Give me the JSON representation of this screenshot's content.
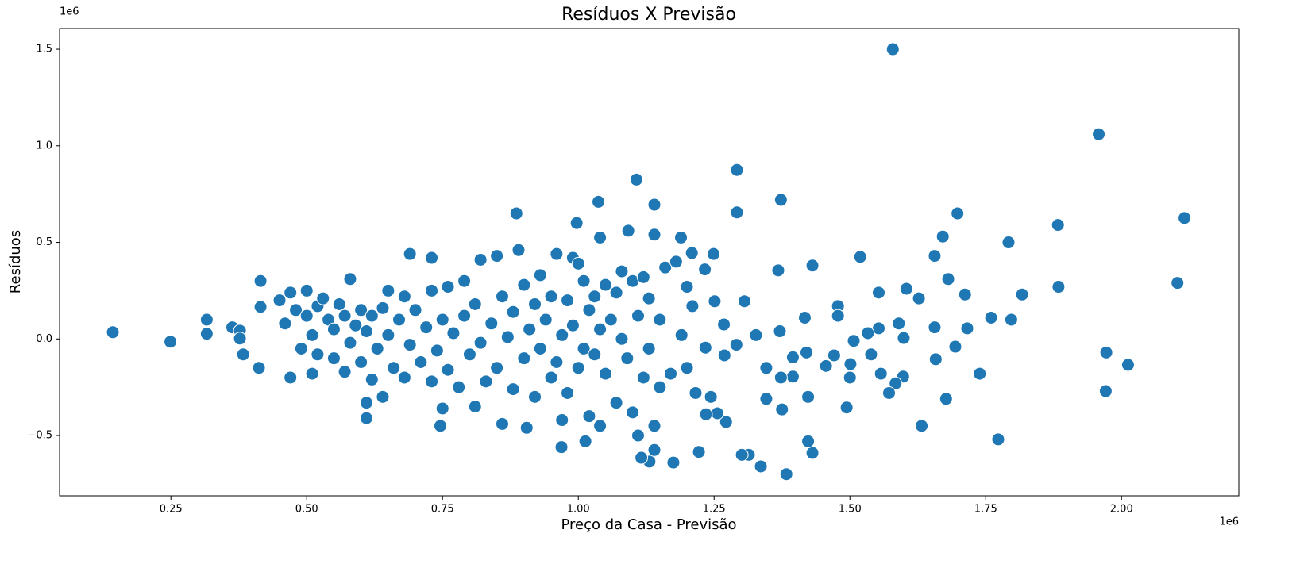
{
  "chart_data": {
    "type": "scatter",
    "title": "Resíduos X Previsão",
    "x_label": "Preço da Casa - Previsão",
    "y_label": "Resíduos",
    "x_offset": "1e6",
    "y_offset": "1e6",
    "xlim": [
      0.045,
      2.216
    ],
    "ylim": [
      -0.812,
      1.607
    ],
    "xticks": [
      0.25,
      {
        "value": 0.5,
        "label": "0.50"
      },
      0.75,
      {
        "value": 1,
        "label": "1.00"
      },
      1.25,
      {
        "value": 1.5,
        "label": "1.50"
      },
      1.75,
      {
        "value": 2,
        "label": "2.00"
      }
    ],
    "yticks": [
      {
        "value": -0.5,
        "label": "−0.5"
      },
      {
        "value": 0,
        "label": "0.0"
      },
      0.5,
      {
        "value": 1,
        "label": "1.0"
      },
      1.5
    ],
    "grid": false,
    "x": [
      0.143,
      0.249,
      0.316,
      0.316,
      0.363,
      0.377,
      0.377,
      0.383,
      0.415,
      0.415,
      0.412,
      1.579,
      1.958,
      2.116,
      2.103,
      2.012,
      1.972,
      1.971,
      1.883,
      1.884,
      1.792,
      1.797,
      1.817,
      1.773,
      1.76,
      1.739,
      1.716,
      1.712,
      1.698,
      1.681,
      1.671,
      1.656,
      1.656,
      1.658,
      1.677,
      1.694,
      1.632,
      1.627,
      1.604,
      1.599,
      1.598,
      1.59,
      1.584,
      1.572,
      1.553,
      1.553,
      1.557,
      1.533,
      1.539,
      1.519,
      1.507,
      1.501,
      1.5,
      1.494,
      1.478,
      1.478,
      1.471,
      1.456,
      1.431,
      1.423,
      1.431,
      1.423,
      1.42,
      1.417,
      1.395,
      1.395,
      1.373,
      1.368,
      1.371,
      1.373,
      1.375,
      1.383,
      1.336,
      1.346,
      1.346,
      1.327,
      1.314,
      1.301,
      1.306,
      1.292,
      1.292,
      1.291,
      1.272,
      1.269,
      1.268,
      1.251,
      1.249,
      1.256,
      1.244,
      1.235,
      1.222,
      1.216,
      1.234,
      1.233,
      1.107,
      1.037,
      0.886,
      0.997,
      1.04,
      1.092,
      1.14,
      1.209,
      1.189,
      1.131,
      1.175,
      1.116,
      1.14,
      1.013,
      0.969,
      0.61,
      0.746,
      0.905,
      0.45,
      0.46,
      0.47,
      0.47,
      0.48,
      0.49,
      0.5,
      0.5,
      0.51,
      0.51,
      0.52,
      0.52,
      0.53,
      0.54,
      0.55,
      0.55,
      0.56,
      0.57,
      0.57,
      0.58,
      0.58,
      0.59,
      0.6,
      0.6,
      0.61,
      0.61,
      0.62,
      0.62,
      0.63,
      0.64,
      0.64,
      0.65,
      0.65,
      0.66,
      0.67,
      0.68,
      0.68,
      0.69,
      0.69,
      0.7,
      0.71,
      0.72,
      0.73,
      0.73,
      0.73,
      0.74,
      0.75,
      0.75,
      0.76,
      0.76,
      0.77,
      0.78,
      0.79,
      0.79,
      0.8,
      0.81,
      0.81,
      0.82,
      0.82,
      0.83,
      0.84,
      0.85,
      0.85,
      0.86,
      0.86,
      0.87,
      0.88,
      0.88,
      0.89,
      0.9,
      0.9,
      0.91,
      0.92,
      0.92,
      0.93,
      0.93,
      0.94,
      0.95,
      0.95,
      0.96,
      0.96,
      0.97,
      0.97,
      0.98,
      0.98,
      0.99,
      0.99,
      1.0,
      1.0,
      1.01,
      1.01,
      1.02,
      1.02,
      1.03,
      1.03,
      1.04,
      1.04,
      1.05,
      1.05,
      1.06,
      1.07,
      1.07,
      1.08,
      1.08,
      1.09,
      1.1,
      1.1,
      1.11,
      1.11,
      1.12,
      1.12,
      1.13,
      1.13,
      1.14,
      1.14,
      1.15,
      1.15,
      1.16,
      1.17,
      1.18,
      1.19,
      1.2,
      1.2,
      1.21
    ],
    "series": [
      {
        "color": "#1f77b4",
        "values": [
          0.035,
          -0.014,
          0.1,
          0.027,
          0.06,
          0.043,
          0.002,
          -0.08,
          0.3,
          0.166,
          -0.15,
          1.5,
          1.06,
          0.626,
          0.29,
          -0.134,
          -0.07,
          -0.27,
          0.59,
          0.27,
          0.5,
          0.1,
          0.23,
          -0.52,
          0.11,
          -0.18,
          0.055,
          0.23,
          0.65,
          0.31,
          0.53,
          0.06,
          0.43,
          -0.105,
          -0.31,
          -0.04,
          -0.45,
          0.21,
          0.26,
          0.005,
          -0.195,
          0.08,
          -0.23,
          -0.28,
          0.24,
          0.055,
          -0.18,
          0.03,
          -0.08,
          0.425,
          -0.01,
          -0.13,
          -0.2,
          -0.355,
          0.17,
          0.12,
          -0.085,
          -0.14,
          0.38,
          -0.3,
          -0.59,
          -0.53,
          -0.07,
          0.11,
          -0.095,
          -0.195,
          0.72,
          0.355,
          0.04,
          -0.2,
          -0.365,
          -0.7,
          -0.66,
          -0.31,
          -0.15,
          0.02,
          -0.6,
          -0.6,
          0.195,
          0.655,
          0.875,
          -0.03,
          -0.43,
          -0.085,
          0.075,
          0.195,
          0.44,
          -0.385,
          -0.3,
          -0.39,
          -0.585,
          -0.28,
          -0.045,
          0.36,
          0.825,
          0.71,
          0.65,
          0.6,
          0.525,
          0.56,
          0.695,
          0.445,
          0.525,
          -0.635,
          -0.64,
          -0.615,
          -0.575,
          -0.53,
          -0.56,
          -0.41,
          -0.45,
          -0.46,
          0.2,
          0.08,
          -0.2,
          0.24,
          0.15,
          -0.05,
          0.25,
          0.12,
          0.02,
          -0.18,
          0.17,
          -0.08,
          0.21,
          0.1,
          -0.1,
          0.05,
          0.18,
          -0.17,
          0.12,
          0.31,
          -0.02,
          0.07,
          -0.12,
          0.15,
          -0.33,
          0.04,
          -0.21,
          0.12,
          -0.05,
          0.16,
          -0.3,
          0.25,
          0.02,
          -0.15,
          0.1,
          0.22,
          -0.2,
          0.44,
          -0.03,
          0.15,
          -0.12,
          0.06,
          0.42,
          0.25,
          -0.22,
          -0.06,
          0.1,
          -0.36,
          0.27,
          -0.16,
          0.03,
          -0.25,
          0.3,
          0.12,
          -0.08,
          -0.35,
          0.18,
          0.41,
          -0.02,
          -0.22,
          0.08,
          0.43,
          -0.15,
          0.22,
          -0.44,
          0.01,
          -0.26,
          0.14,
          0.46,
          -0.1,
          0.28,
          0.05,
          -0.3,
          0.18,
          0.33,
          -0.05,
          0.1,
          -0.2,
          0.22,
          0.44,
          -0.12,
          0.02,
          -0.42,
          0.2,
          -0.28,
          0.42,
          0.07,
          -0.15,
          0.39,
          0.3,
          -0.05,
          0.15,
          -0.4,
          -0.08,
          0.22,
          0.05,
          -0.45,
          0.28,
          -0.18,
          0.1,
          -0.33,
          0.24,
          0.35,
          0.0,
          -0.1,
          0.3,
          -0.38,
          0.12,
          -0.5,
          0.32,
          -0.2,
          -0.05,
          0.21,
          0.54,
          -0.45,
          0.1,
          -0.25,
          0.37,
          -0.18,
          0.4,
          0.02,
          0.27,
          -0.15,
          0.17
        ]
      }
    ]
  }
}
